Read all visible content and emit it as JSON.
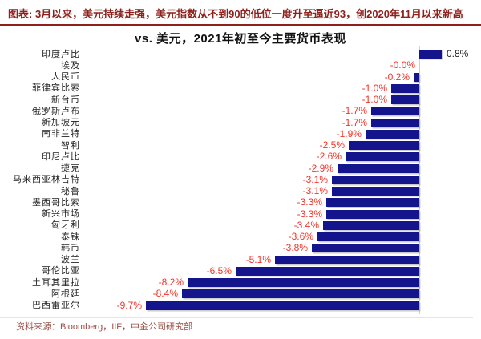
{
  "header": {
    "note": "图表: 3月以来，美元持续走强，美元指数从不到90的低位一度升至逼近93，创2020年11月以来新高"
  },
  "chart_data": {
    "type": "bar",
    "orientation": "horizontal",
    "title": "vs. 美元，2021年初至今主要货币表现",
    "categories": [
      "印度卢比",
      "埃及",
      "人民币",
      "菲律宾比索",
      "新台币",
      "俄罗斯卢布",
      "新加坡元",
      "南非兰特",
      "智利",
      "印尼卢比",
      "捷克",
      "马来西亚林吉特",
      "秘鲁",
      "墨西哥比索",
      "新兴市场",
      "匈牙利",
      "泰铢",
      "韩币",
      "波兰",
      "哥伦比亚",
      "土耳其里拉",
      "阿根廷",
      "巴西雷亚尔"
    ],
    "values": [
      0.8,
      -0.0,
      -0.2,
      -1.0,
      -1.0,
      -1.7,
      -1.7,
      -1.9,
      -2.5,
      -2.6,
      -2.9,
      -3.1,
      -3.1,
      -3.3,
      -3.3,
      -3.4,
      -3.6,
      -3.8,
      -5.1,
      -6.5,
      -8.2,
      -8.4,
      -9.7
    ],
    "labels": [
      "0.8%",
      "-0.0%",
      "-0.2%",
      "-1.0%",
      "-1.0%",
      "-1.7%",
      "-1.7%",
      "-1.9%",
      "-2.5%",
      "-2.6%",
      "-2.9%",
      "-3.1%",
      "-3.1%",
      "-3.3%",
      "-3.3%",
      "-3.4%",
      "-3.6%",
      "-3.8%",
      "-5.1%",
      "-6.5%",
      "-8.2%",
      "-8.4%",
      "-9.7%"
    ],
    "xlim": [
      -10,
      1
    ],
    "unit": "%",
    "grid": false,
    "legend": false,
    "bar_color": "#14148c",
    "negative_label_color": "#f2352b",
    "positive_label_color": "#1a1a1a",
    "axis_color": "#cfcfcf"
  },
  "footer": {
    "source": "资料来源：Bloomberg，IIF，中金公司研究部"
  }
}
